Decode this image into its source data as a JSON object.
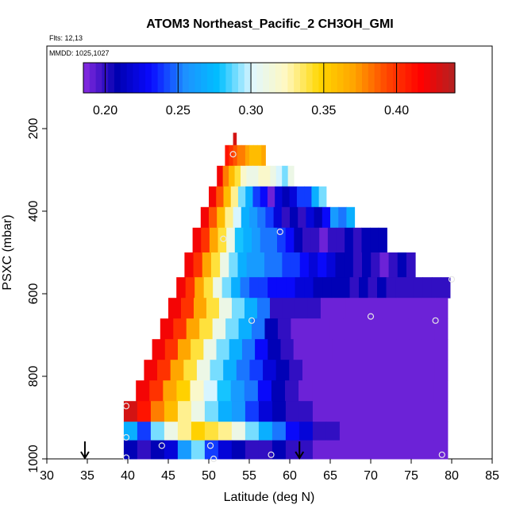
{
  "chart_data": {
    "type": "heatmap",
    "title": "ATOM3 Northeast_Pacific_2 CH3OH_GMI",
    "flights_label": "Flts: 12,13",
    "mmdd_label": "MMDD: 1025,1027",
    "xlabel": "Latitude (deg N)",
    "ylabel": "PSXC (mbar)",
    "xlim": [
      30,
      85
    ],
    "ylim": [
      1000,
      0
    ],
    "x_ticks": [
      30,
      35,
      40,
      45,
      50,
      55,
      60,
      65,
      70,
      75,
      80,
      85
    ],
    "y_ticks": [
      200,
      400,
      600,
      800,
      1000
    ],
    "colorbar": {
      "range": [
        0.185,
        0.44
      ],
      "ticks": [
        0.2,
        0.25,
        0.3,
        0.35,
        0.4
      ],
      "tick_labels": [
        "0.20",
        "0.25",
        "0.30",
        "0.35",
        "0.40"
      ],
      "colors": [
        "#8a2be2",
        "#0000b0",
        "#0a0aff",
        "#1e90ff",
        "#00bfff",
        "#e0f7ff",
        "#fff8c0",
        "#ffd700",
        "#ffa500",
        "#ff4500",
        "#ff0000",
        "#b22222"
      ]
    },
    "arrows_lat": [
      34.7,
      61.2
    ],
    "profiles": [
      {
        "lat_left": 53.0,
        "lat_right": 53.4,
        "p_top": 210,
        "p_bot": 240,
        "vals": [
          0.43
        ]
      },
      {
        "lat_left": 52.0,
        "lat_right": 57.0,
        "p_top": 240,
        "p_bot": 290,
        "vals": [
          0.41,
          0.4,
          0.39,
          0.38,
          0.38,
          0.37,
          0.36,
          0.36,
          0.36,
          0.37
        ]
      },
      {
        "lat_left": 51.0,
        "lat_right": 60.5,
        "p_top": 290,
        "p_bot": 340,
        "vals": [
          0.42,
          0.38,
          0.36,
          0.34,
          0.32,
          0.31,
          0.31,
          0.32,
          0.32,
          0.31,
          0.3,
          0.29,
          0.31
        ]
      },
      {
        "lat_left": 50.0,
        "lat_right": 64.5,
        "p_top": 340,
        "p_bot": 390,
        "vals": [
          0.42,
          0.39,
          0.36,
          0.33,
          0.29,
          0.27,
          0.24,
          0.23,
          0.19,
          0.22,
          0.21,
          0.22,
          0.24,
          0.24,
          0.27,
          0.29
        ]
      },
      {
        "lat_left": 49.0,
        "lat_right": 68.0,
        "p_top": 390,
        "p_bot": 440,
        "vals": [
          0.42,
          0.39,
          0.36,
          0.33,
          0.3,
          0.27,
          0.26,
          0.25,
          0.24,
          0.22,
          0.2,
          0.21,
          0.2,
          0.22,
          0.21,
          0.23,
          0.26,
          0.25,
          0.27
        ]
      },
      {
        "lat_left": 48.0,
        "lat_right": 72.0,
        "p_top": 440,
        "p_bot": 500,
        "vals": [
          0.42,
          0.4,
          0.37,
          0.34,
          0.31,
          0.28,
          0.27,
          0.26,
          0.25,
          0.25,
          0.24,
          0.23,
          0.21,
          0.2,
          0.2,
          0.19,
          0.2,
          0.2,
          0.21,
          0.2,
          0.21,
          0.21,
          0.21
        ]
      },
      {
        "lat_left": 47.0,
        "lat_right": 75.5,
        "p_top": 500,
        "p_bot": 560,
        "vals": [
          0.42,
          0.4,
          0.37,
          0.34,
          0.31,
          0.29,
          0.27,
          0.26,
          0.26,
          0.25,
          0.25,
          0.24,
          0.24,
          0.23,
          0.22,
          0.23,
          0.22,
          0.21,
          0.21,
          0.2,
          0.21,
          0.2,
          0.19,
          0.2,
          0.21,
          0.2
        ]
      },
      {
        "lat_left": 46.0,
        "lat_right": 79.8,
        "p_top": 560,
        "p_bot": 610,
        "vals": [
          0.42,
          0.4,
          0.37,
          0.34,
          0.31,
          0.29,
          0.27,
          0.25,
          0.24,
          0.24,
          0.23,
          0.23,
          0.23,
          0.22,
          0.22,
          0.21,
          0.21,
          0.21,
          0.21,
          0.2,
          0.21,
          0.2,
          0.21,
          0.2,
          0.2,
          0.2,
          0.2,
          0.2,
          0.2,
          0.2
        ]
      },
      {
        "lat_left": 45.0,
        "lat_right": 79.5,
        "p_top": 610,
        "p_bot": 660,
        "vals": [
          0.42,
          0.4,
          0.37,
          0.34,
          0.31,
          0.29,
          0.27,
          0.25,
          0.2,
          0.2,
          0.2,
          0.2,
          0.19,
          0.19,
          0.19,
          0.19,
          0.19,
          0.19,
          0.19,
          0.19,
          0.19,
          0.19
        ]
      },
      {
        "lat_left": 44.0,
        "lat_right": 79.5,
        "p_top": 660,
        "p_bot": 710,
        "vals": [
          0.42,
          0.4,
          0.37,
          0.34,
          0.31,
          0.29,
          0.27,
          0.25,
          0.21,
          0.2,
          0.19,
          0.19,
          0.19,
          0.19,
          0.19,
          0.19,
          0.19,
          0.19,
          0.19,
          0.19,
          0.19,
          0.19
        ]
      },
      {
        "lat_left": 43.0,
        "lat_right": 79.5,
        "p_top": 710,
        "p_bot": 760,
        "vals": [
          0.42,
          0.4,
          0.37,
          0.34,
          0.31,
          0.29,
          0.27,
          0.25,
          0.23,
          0.21,
          0.2,
          0.19,
          0.19,
          0.19,
          0.19,
          0.19,
          0.19,
          0.19,
          0.19,
          0.19,
          0.19,
          0.19,
          0.19
        ]
      },
      {
        "lat_left": 42.0,
        "lat_right": 79.5,
        "p_top": 760,
        "p_bot": 810,
        "vals": [
          0.42,
          0.4,
          0.37,
          0.34,
          0.31,
          0.29,
          0.27,
          0.25,
          0.24,
          0.22,
          0.21,
          0.2,
          0.19,
          0.19,
          0.19,
          0.19,
          0.19,
          0.19,
          0.19,
          0.19,
          0.19,
          0.19,
          0.19
        ]
      },
      {
        "lat_left": 41.0,
        "lat_right": 79.5,
        "p_top": 810,
        "p_bot": 860,
        "vals": [
          0.42,
          0.4,
          0.37,
          0.35,
          0.32,
          0.3,
          0.28,
          0.26,
          0.25,
          0.23,
          0.21,
          0.2,
          0.19,
          0.19,
          0.19,
          0.19,
          0.19,
          0.19,
          0.19,
          0.19,
          0.19,
          0.19,
          0.19
        ]
      },
      {
        "lat_left": 39.5,
        "lat_right": 79.5,
        "p_top": 860,
        "p_bot": 910,
        "vals": [
          0.43,
          0.41,
          0.38,
          0.36,
          0.33,
          0.31,
          0.29,
          0.27,
          0.26,
          0.24,
          0.22,
          0.21,
          0.2,
          0.2,
          0.19,
          0.19,
          0.19,
          0.19,
          0.19,
          0.19,
          0.19,
          0.19,
          0.19,
          0.19
        ]
      },
      {
        "lat_left": 39.5,
        "lat_right": 79.5,
        "p_top": 910,
        "p_bot": 955,
        "vals": [
          0.27,
          0.24,
          0.29,
          0.31,
          0.33,
          0.35,
          0.34,
          0.33,
          0.31,
          0.29,
          0.27,
          0.25,
          0.23,
          0.22,
          0.2,
          0.2,
          0.19,
          0.19,
          0.19,
          0.19,
          0.19,
          0.19,
          0.19,
          0.19
        ]
      },
      {
        "lat_left": 39.5,
        "lat_right": 79.5,
        "p_top": 955,
        "p_bot": 1000,
        "vals": [
          0.21,
          0.2,
          0.21,
          0.22,
          0.26,
          0.29,
          0.24,
          0.22,
          0.21,
          0.2,
          0.2,
          0.21,
          0.2,
          0.2,
          0.19,
          0.19,
          0.19,
          0.19,
          0.19,
          0.19,
          0.19,
          0.19,
          0.19,
          0.19
        ]
      }
    ],
    "sample_points": [
      {
        "lat": 53.0,
        "p": 262
      },
      {
        "lat": 51.8,
        "p": 467
      },
      {
        "lat": 58.8,
        "p": 450
      },
      {
        "lat": 80.0,
        "p": 565
      },
      {
        "lat": 55.3,
        "p": 665
      },
      {
        "lat": 70.0,
        "p": 655
      },
      {
        "lat": 78.0,
        "p": 665
      },
      {
        "lat": 39.8,
        "p": 872
      },
      {
        "lat": 39.8,
        "p": 948
      },
      {
        "lat": 44.2,
        "p": 968
      },
      {
        "lat": 50.2,
        "p": 968
      },
      {
        "lat": 39.8,
        "p": 997
      },
      {
        "lat": 50.6,
        "p": 1000
      },
      {
        "lat": 57.7,
        "p": 990
      },
      {
        "lat": 78.8,
        "p": 990
      }
    ]
  }
}
